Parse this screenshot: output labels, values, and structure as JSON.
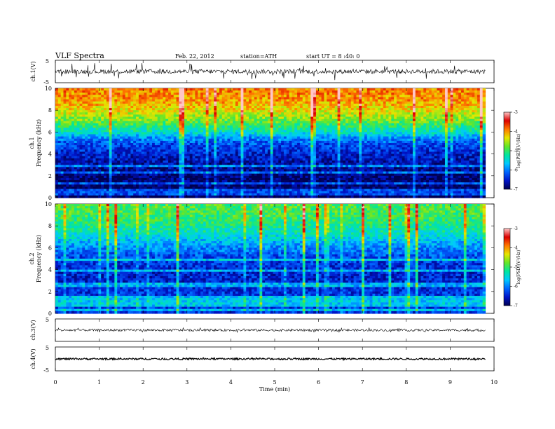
{
  "header": {
    "title": "VLF  Spectra",
    "date": "Feb. 22, 2012",
    "station": "station=ATH",
    "start_ut": "start  UT =   8  :40: 0"
  },
  "colors": {
    "spectrogram_scale": [
      "#000050",
      "#0014c8",
      "#0064ff",
      "#00c8ff",
      "#00e6a0",
      "#64e628",
      "#e6e600",
      "#ff7800",
      "#dc0000",
      "#ffc8c8"
    ],
    "trace": "#000000"
  },
  "chart_data": [
    {
      "id": "ch1_waveform",
      "type": "line",
      "ylabel": "ch.1(V)",
      "ylim": [
        -5,
        5
      ],
      "yticks": [
        "5",
        "-5"
      ],
      "baseline_value": 0,
      "typical_amplitude": 1,
      "spike_amplitude": 4
    },
    {
      "id": "ch1_spectrogram",
      "type": "heatmap",
      "ylabel_channel": "ch.1",
      "ylabel": "Frequency  (kHz)",
      "ylim": [
        0,
        10
      ],
      "yticks": [
        "0",
        "2",
        "4",
        "6",
        "8",
        "10"
      ],
      "colorbar": {
        "label": "log(PSD)(V²/Hz)",
        "range": [
          -7,
          -3
        ],
        "ticks": [
          "-3",
          "-4",
          "-5",
          "-6",
          "-7"
        ]
      },
      "profile_kHz_to_logPSD": [
        [
          0,
          -7.0
        ],
        [
          1,
          -6.95
        ],
        [
          2,
          -6.85
        ],
        [
          3,
          -6.7
        ],
        [
          4,
          -6.5
        ],
        [
          5,
          -6.2
        ],
        [
          5.5,
          -5.9
        ],
        [
          6,
          -5.4
        ],
        [
          7,
          -4.8
        ],
        [
          8,
          -4.3
        ],
        [
          9,
          -4.0
        ],
        [
          10,
          -3.9
        ]
      ],
      "line_features_kHz": [
        0.3,
        0.6,
        1.3,
        2.3,
        2.9
      ]
    },
    {
      "id": "ch2_spectrogram",
      "type": "heatmap",
      "ylabel_channel": "ch.2",
      "ylabel": "Frequency  (kHz)",
      "ylim": [
        0,
        10
      ],
      "yticks": [
        "0",
        "2",
        "4",
        "6",
        "8",
        "10"
      ],
      "colorbar": {
        "label": "log(PSD)(V²/Hz)",
        "range": [
          -7,
          -3
        ],
        "ticks": [
          "-3",
          "-4",
          "-5",
          "-6",
          "-7"
        ]
      },
      "profile_kHz_to_logPSD": [
        [
          0,
          -6.4
        ],
        [
          1,
          -6.3
        ],
        [
          2,
          -6.4
        ],
        [
          3,
          -6.5
        ],
        [
          4,
          -6.45
        ],
        [
          5,
          -6.3
        ],
        [
          6,
          -5.95
        ],
        [
          7,
          -5.5
        ],
        [
          8,
          -5.15
        ],
        [
          9,
          -4.95
        ],
        [
          10,
          -4.9
        ]
      ],
      "line_features_kHz": [
        0.35,
        0.7,
        1.0,
        1.4,
        2.6,
        3.9,
        4.9
      ]
    },
    {
      "id": "ch3_waveform",
      "type": "line",
      "ylabel": "ch.3(V)",
      "ylim": [
        -5,
        5
      ],
      "yticks": [
        "5"
      ],
      "baseline_value": 0,
      "typical_amplitude": 0.5,
      "spike_amplitude": 1
    },
    {
      "id": "ch4_waveform",
      "type": "line",
      "ylabel": "ch.4(V)",
      "ylim": [
        -5,
        5
      ],
      "yticks": [
        "5",
        "-5"
      ],
      "baseline_value": 0,
      "typical_amplitude": 0.35,
      "spike_amplitude": 0.5
    }
  ],
  "time_axis": {
    "xlabel": "Time  (min)",
    "range": [
      0,
      10
    ],
    "ticks": [
      "0",
      "1",
      "2",
      "3",
      "4",
      "5",
      "6",
      "7",
      "8",
      "9",
      "10"
    ],
    "data_end_min": 9.8
  }
}
